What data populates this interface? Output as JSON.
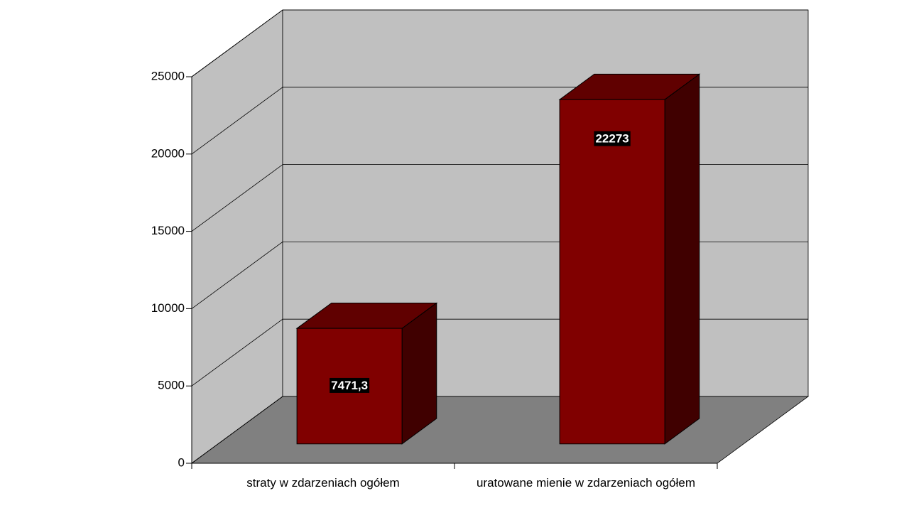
{
  "chart_data": {
    "type": "bar3d",
    "categories": [
      "straty w zdarzeniach ogółem",
      "uratowane mienie w zdarzeniach ogółem"
    ],
    "values": [
      7471.3,
      22273
    ],
    "value_labels": [
      "7471,3",
      "22273"
    ],
    "color": "#800000",
    "ylim": [
      0,
      25000
    ],
    "yticks": [
      0,
      5000,
      10000,
      15000,
      20000,
      25000
    ],
    "grid": true
  }
}
